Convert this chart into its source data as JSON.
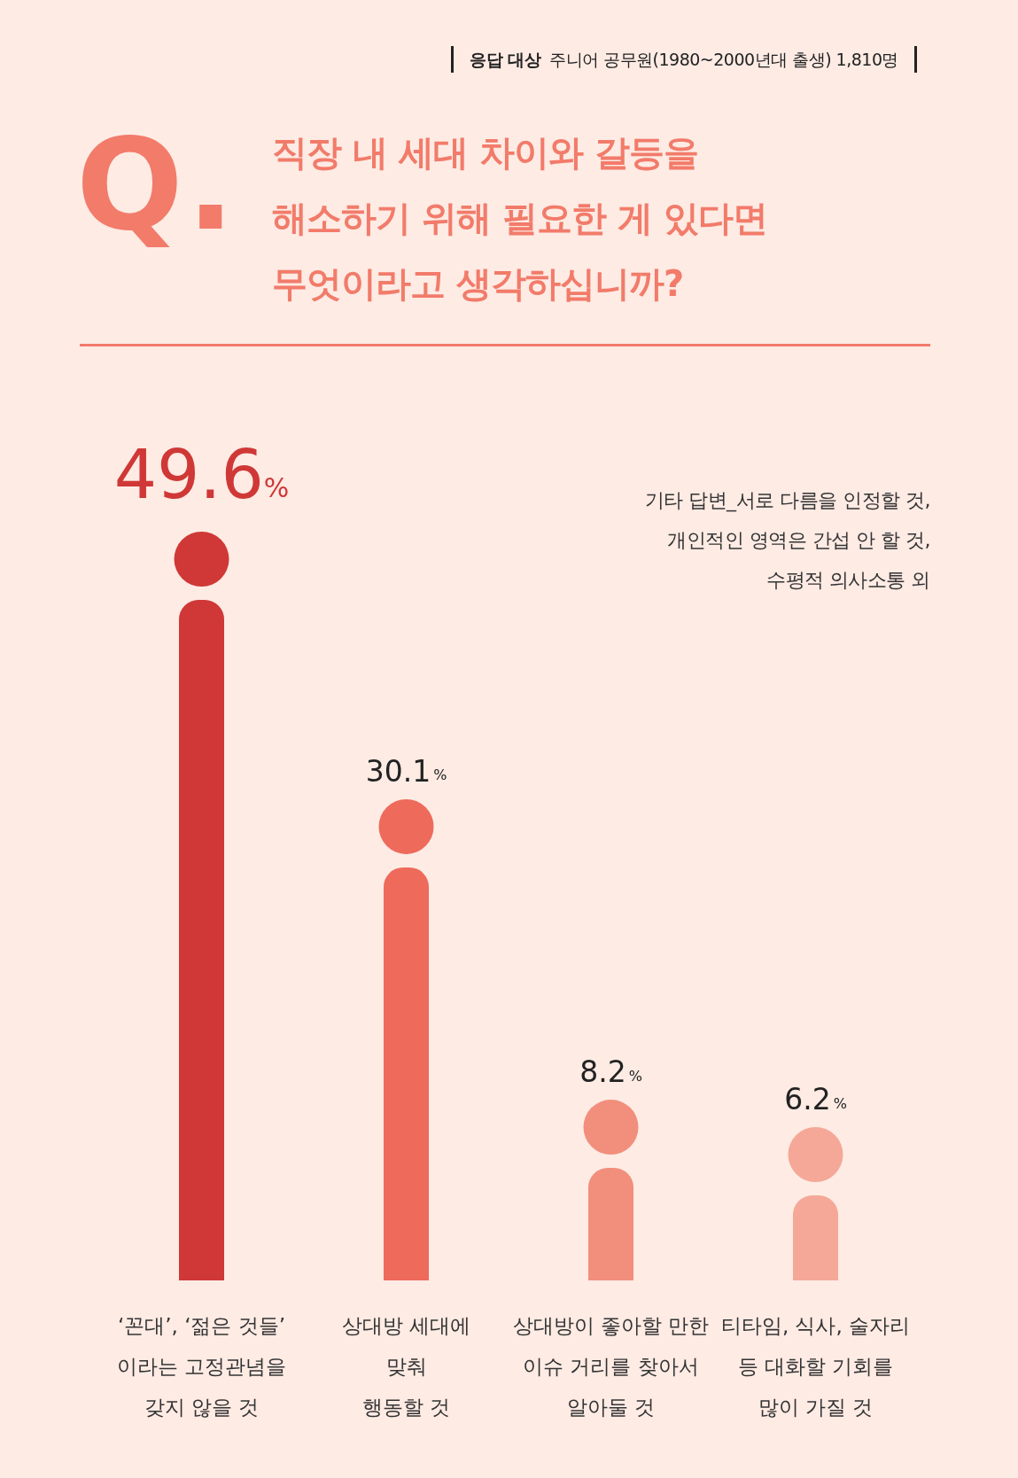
{
  "chart_data": {
    "type": "bar",
    "title": "직장 내 세대 차이와 갈등을\n해소하기 위해 필요한 게 있다면\n무엇이라고 생각하십니까?",
    "subtitle": "응답 대상 주니어 공무원(1980~2000년대 출생) 1,810명",
    "categories": [
      "‘꼰대’, ‘젊은 것들’\n이라는 고정관념을\n갖지 않을 것",
      "상대방 세대에\n맞춰\n행동할 것",
      "상대방이 좋아할 만한\n이슈 거리를 찾아서\n알아둘 것",
      "티타임, 식사, 술자리\n등 대화할 기회를\n많이 가질 것"
    ],
    "values": [
      49.6,
      30.1,
      8.2,
      6.2
    ],
    "colors": [
      "#cf3836",
      "#ee6a5b",
      "#f28e7c",
      "#f5a897"
    ],
    "value_labels": [
      "49.6%",
      "30.1%",
      "8.2%",
      "6.2%"
    ],
    "annotations": [
      "Q.",
      "기타 답변_서로 다름을 인정할 것,\n개인적인 영역은 간섭 안 할 것,\n수평적 의사소통 외"
    ]
  }
}
